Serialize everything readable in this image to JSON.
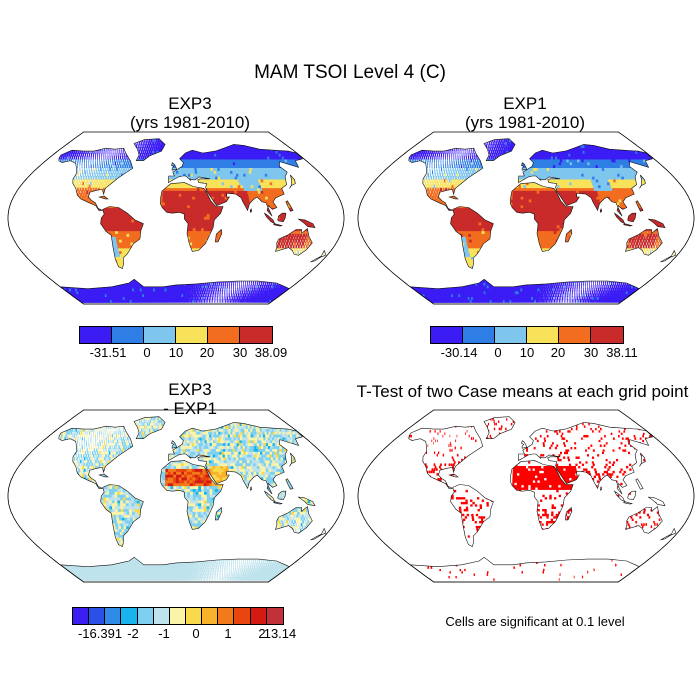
{
  "title": "MAM TSOI Level 4 (C)",
  "panels": [
    {
      "title_line1": "EXP3",
      "title_line2": "(yrs 1981-2010)"
    },
    {
      "title_line1": "EXP1",
      "title_line2": "(yrs 1981-2010)"
    },
    {
      "title_line1": "EXP3",
      "title_line2": "- EXP1"
    },
    {
      "title_line1": "T-Test of two Case means at each grid point"
    }
  ],
  "colorbars": [
    {
      "colors": [
        "#3b1cf5",
        "#2f7ee6",
        "#7fc6ee",
        "#f7e25a",
        "#f26d1f",
        "#c92a2a"
      ],
      "labels": [
        "-31.51",
        "0",
        "10",
        "20",
        "30",
        "38.09"
      ]
    },
    {
      "colors": [
        "#3b1cf5",
        "#2f7ee6",
        "#7fc6ee",
        "#f7e25a",
        "#f26d1f",
        "#c92a2a"
      ],
      "labels": [
        "-30.14",
        "0",
        "10",
        "20",
        "30",
        "38.11"
      ]
    },
    {
      "colors": [
        "#3a1ef2",
        "#2a50e8",
        "#2f8be6",
        "#19b4ee",
        "#7fd0f0",
        "#bfe3ec",
        "#fbf3a8",
        "#f9da4a",
        "#f8b22b",
        "#f27a1b",
        "#e8450f",
        "#d41a13",
        "#c2303a"
      ],
      "labels": [
        "-16.391",
        "-2",
        "-1",
        "0",
        "1",
        "2",
        "13.14"
      ]
    }
  ],
  "note": "Cells are significant at 0.1 level"
}
